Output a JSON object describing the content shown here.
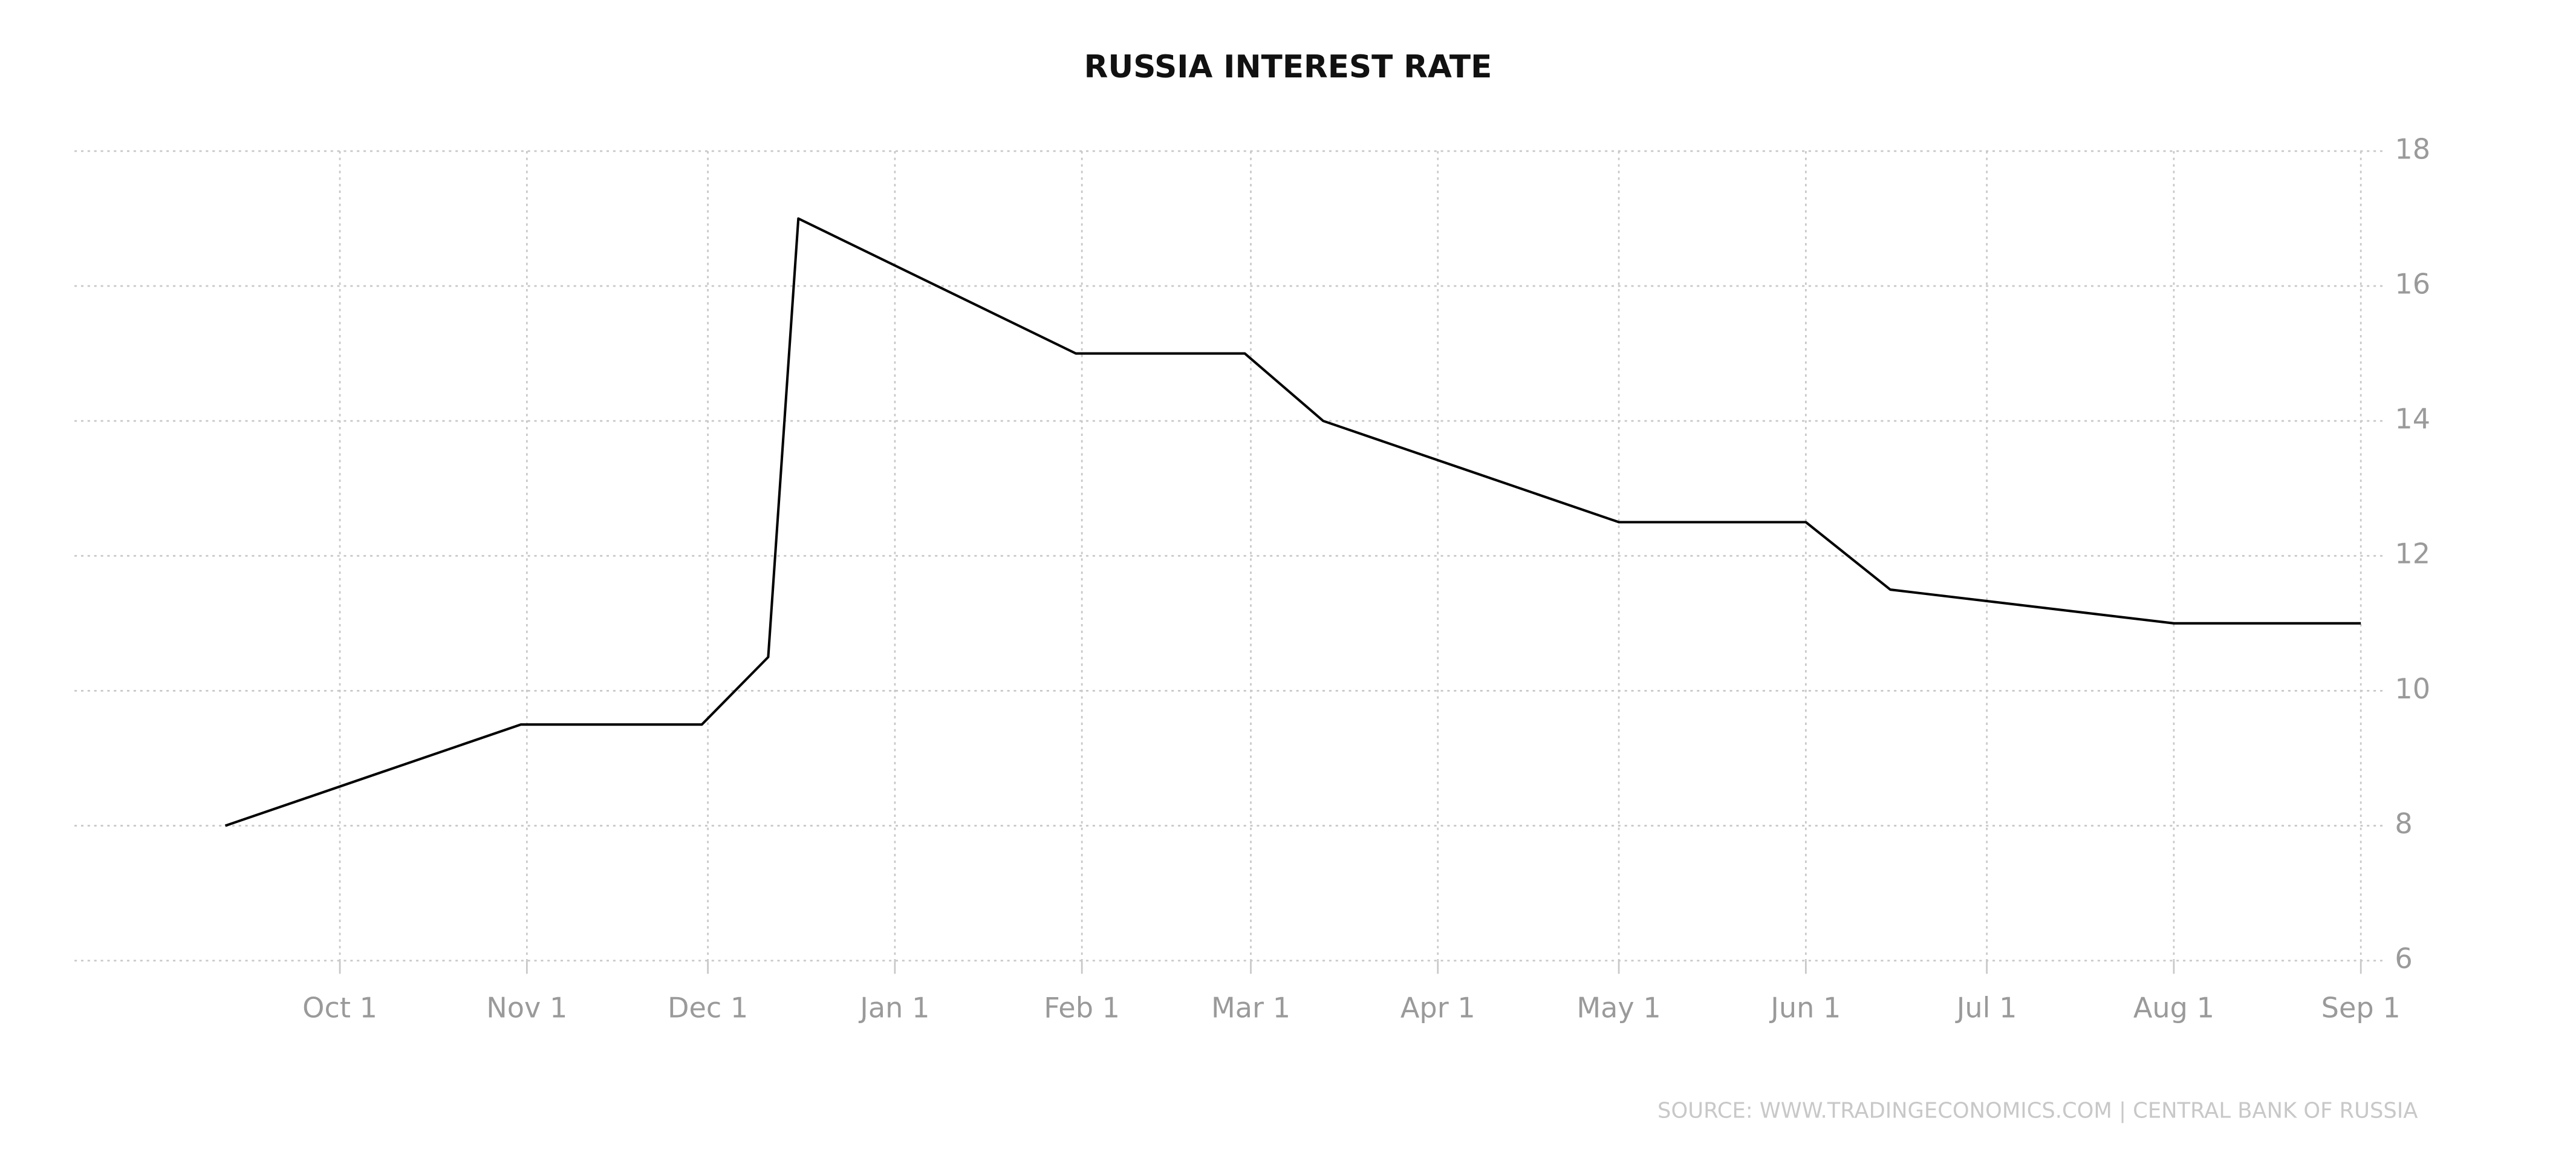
{
  "chart_data": {
    "type": "line",
    "title": "RUSSIA INTEREST RATE",
    "source": "SOURCE: WWW.TRADINGECONOMICS.COM | CENTRAL BANK OF RUSSIA",
    "x": [
      11,
      60,
      90,
      101,
      106,
      152,
      180,
      193,
      242,
      273,
      287,
      334,
      365
    ],
    "series": [
      {
        "color": "#000000",
        "values": [
          8,
          9.5,
          9.5,
          10.5,
          17,
          15,
          15,
          14,
          12.5,
          12.5,
          11.5,
          11,
          11
        ]
      }
    ],
    "xlim": [
      -14,
      369
    ],
    "xticks": [
      {
        "value": 30,
        "label": "Oct 1"
      },
      {
        "value": 61,
        "label": "Nov 1"
      },
      {
        "value": 91,
        "label": "Dec 1"
      },
      {
        "value": 122,
        "label": "Jan 1"
      },
      {
        "value": 153,
        "label": "Feb 1"
      },
      {
        "value": 181,
        "label": "Mar 1"
      },
      {
        "value": 212,
        "label": "Apr 1"
      },
      {
        "value": 242,
        "label": "May 1"
      },
      {
        "value": 273,
        "label": "Jun 1"
      },
      {
        "value": 303,
        "label": "Jul 1"
      },
      {
        "value": 334,
        "label": "Aug 1"
      },
      {
        "value": 365,
        "label": "Sep 1"
      }
    ],
    "ylim": [
      6,
      18
    ],
    "yticks": [
      6,
      8,
      10,
      12,
      14,
      16,
      18
    ],
    "grid": true
  }
}
